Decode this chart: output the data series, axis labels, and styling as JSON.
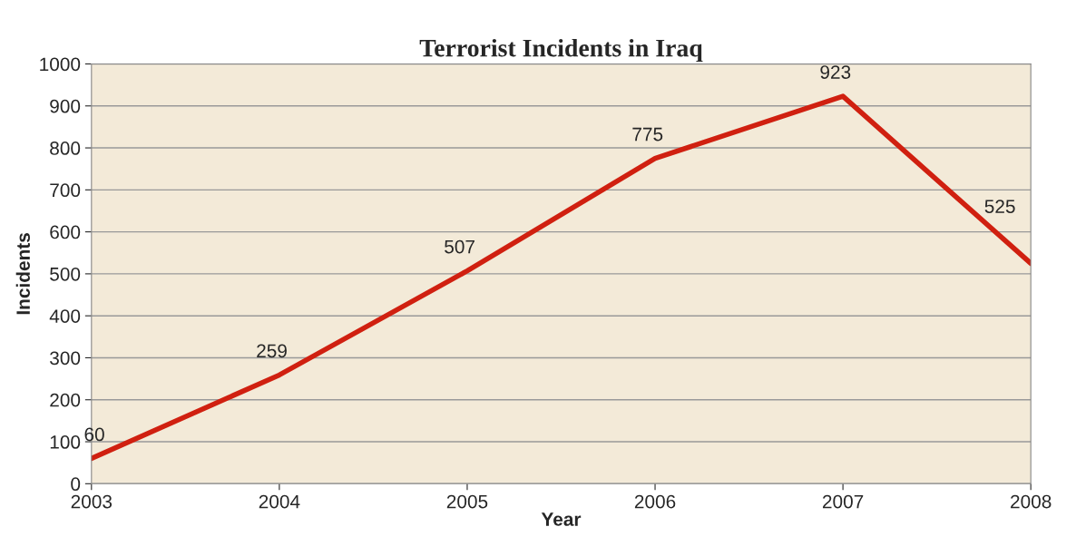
{
  "chart_data": {
    "type": "line",
    "title": "Terrorist Incidents in Iraq",
    "xlabel": "Year",
    "ylabel": "Incidents",
    "x": [
      2003,
      2004,
      2005,
      2006,
      2007,
      2008
    ],
    "series": [
      {
        "color": "#d02010",
        "values": [
          60,
          259,
          507,
          775,
          923,
          525
        ]
      }
    ],
    "xlim": [
      2003,
      2008
    ],
    "xticks": [
      2003,
      2004,
      2005,
      2006,
      2007,
      2008
    ],
    "ylim": [
      0,
      1000
    ],
    "yticks": [
      0,
      100,
      200,
      300,
      400,
      500,
      600,
      700,
      800,
      900,
      1000
    ],
    "grid": "y",
    "data_labels": true,
    "marker": "none",
    "line_style": "solid",
    "legend": false
  }
}
